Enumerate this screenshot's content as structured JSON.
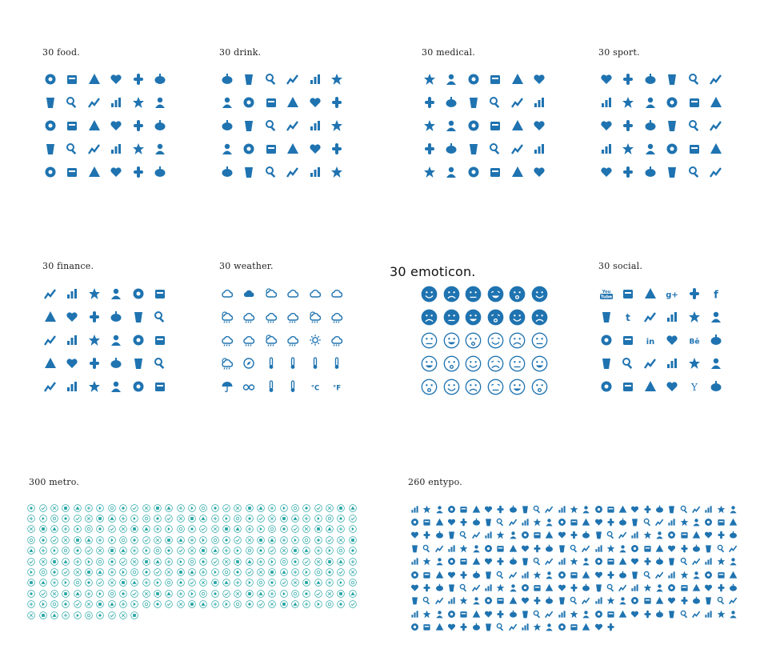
{
  "palette": {
    "icon_blue": "#1f73b0",
    "metro_teal": "#24a4a4",
    "text": "#222222"
  },
  "sets": [
    {
      "key": "food",
      "title": "30 food.",
      "count": 30,
      "style": "glyph",
      "icons": [
        "grapes-icon",
        "tomato-icon",
        "carrot-icon",
        "chili-pepper-icon",
        "mushroom-icon",
        "bell-pepper-icon",
        "cheese-icon",
        "croissant-icon",
        "pizza-slice-icon",
        "fish-icon",
        "watermelon-slice-icon",
        "bread-roll-icon",
        "chicken-icon",
        "sausage-icon",
        "macaron-icon",
        "pear-icon",
        "crown-cake-icon",
        "salad-bowl-icon",
        "popcorn-icon",
        "plate-cutlery-icon",
        "noodle-bowl-icon",
        "donut-icon",
        "cupcake-icon",
        "pretzel-icon",
        "burger-icon",
        "lollipop-icon",
        "toast-icon",
        "noodles-icon",
        "cake-slice-icon",
        "cooking-pot-icon"
      ]
    },
    {
      "key": "drink",
      "title": "30 drink.",
      "count": 30,
      "style": "glyph",
      "icons": [
        "cup-with-straw-icon",
        "tall-glass-icon",
        "glass-icon",
        "soda-cup-icon",
        "coffee-to-go-icon",
        "cocktail-icon",
        "wine-glass-icon",
        "wine-glass-full-icon",
        "can-icon",
        "juice-glass-icon",
        "tumbler-icon",
        "mug-icon",
        "tropical-drink-icon",
        "martini-icon",
        "champagne-icon",
        "beer-bucket-icon",
        "cocktail-straw-icon",
        "thermos-icon",
        "bottle-and-glass-icon",
        "teapot-icon",
        "coffee-pot-icon",
        "milk-bottle-icon",
        "bottle-icon",
        "ice-bucket-icon",
        "popsicle-icon",
        "ice-lolly-icon",
        "ice-cream-cone-icon",
        "soft-serve-icon",
        "sundae-icon",
        "beer-mug-icon"
      ]
    },
    {
      "key": "medical",
      "title": "30 medical.",
      "count": 30,
      "style": "glyph",
      "icons": [
        "battery-icon",
        "pill-bottle-icon",
        "mortar-icon",
        "hospital-icon",
        "hourglass-icon",
        "capsule-icon",
        "molecule-icon",
        "heartbeat-icon",
        "nurse-cap-icon",
        "heart-pulse-icon",
        "blood-drop-icon",
        "gender-icon",
        "magnifier-icon",
        "tooth-icon",
        "head-profile-icon",
        "hand-icon",
        "first-aid-drop-icon",
        "stethoscope-icon",
        "eye-icon",
        "wheelchair-icon",
        "doctor-icon",
        "syringe-icon",
        "dropper-icon",
        "shopping-cart-icon",
        "male-icon",
        "female-icon",
        "atom-icon",
        "first-aid-kit-icon",
        "flask-icon",
        "thermometer-icon"
      ]
    },
    {
      "key": "sport",
      "title": "30 sport.",
      "count": 30,
      "style": "glyph",
      "icons": [
        "steering-wheel-icon",
        "bowling-icon",
        "rugby-ball-icon",
        "golf-flag-icon",
        "volleyball-icon",
        "podium-icon",
        "dart-icon",
        "football-field-icon",
        "racing-flags-icon",
        "crossed-bats-icon",
        "bicycle-icon",
        "tactics-icon",
        "american-football-icon",
        "trophy-icon",
        "bottle-icon",
        "hockey-sticks-icon",
        "stopwatch-icon",
        "target-icon",
        "speedometer-icon",
        "ping-pong-icon",
        "soccer-ball-icon",
        "pills-icon",
        "shuttlecock-icon",
        "torch-icon",
        "tennis-icon",
        "medal-icon",
        "finish-banner-icon",
        "heart-rate-icon",
        "dumbbell-icon",
        "basketball-hoop-icon"
      ]
    },
    {
      "key": "finance",
      "title": "30 finance.",
      "count": 30,
      "style": "glyph",
      "icons": [
        "bank-icon",
        "calendar-icon",
        "money-bag-icon",
        "scales-icon",
        "gavel-icon",
        "growth-chart-icon",
        "globe-icon",
        "banknote-icon",
        "bar-chart-icon",
        "report-icon",
        "diamond-icon",
        "pie-chart-icon",
        "target-icon",
        "exchange-icon",
        "stacked-coins-icon",
        "calculator-icon",
        "line-chart-icon",
        "trash-icon",
        "unlocked-icon",
        "dollar-coin-icon",
        "world-map-icon",
        "grid-icon",
        "shield-icon",
        "document-icon",
        "lock-icon",
        "credit-card-icon",
        "gears-icon",
        "lightbulb-icon",
        "wallet-icon",
        "search-icon"
      ]
    },
    {
      "key": "weather",
      "title": "30 weather.",
      "count": 30,
      "style": "outline",
      "temp_c": "°C",
      "temp_f": "°F",
      "icons": [
        "cloud-icon",
        "cloud-filled-icon",
        "sun-cloud-icon",
        "moon-cloud-icon",
        "rain-cloud-icon",
        "wind-cloud-icon",
        "sun-rain-icon",
        "thunder-cloud-icon",
        "sun-drizzle-icon",
        "moon-rain-icon",
        "snow-cloud-icon",
        "windy-cloud-icon",
        "hail-cloud-icon",
        "sun-thunder-icon",
        "sleet-cloud-icon",
        "moon-snow-icon",
        "sun-icon",
        "downpour-icon",
        "sun-lightning-icon",
        "compass-icon",
        "thermometer-low-icon",
        "thermometer-mid-icon",
        "thermometer-high-icon",
        "cloud-drop-icon",
        "umbrella-icon",
        "sunglasses-icon",
        "thermometer-icon",
        "thermometer-full-icon",
        "celsius-icon",
        "fahrenheit-icon"
      ]
    },
    {
      "key": "emoticon",
      "title": "30 emoticon.",
      "count": 30,
      "style": "emoticon",
      "icons": [
        "happy-face-icon",
        "smile-face-icon",
        "grin-face-icon",
        "laugh-face-icon",
        "wink-face-icon",
        "sleepy-face-icon",
        "angry-face-icon",
        "neutral-face-icon",
        "surprised-face-icon",
        "love-face-icon",
        "sad-face-icon",
        "tired-face-icon",
        "frown-face-icon",
        "smile-outline-icon",
        "squint-face-icon",
        "annoyed-face-icon",
        "content-face-icon",
        "playful-face-icon",
        "smile-outline-icon",
        "sad-outline-icon",
        "upset-face-icon",
        "cry-face-icon",
        "calm-face-icon",
        "tongue-face-icon",
        "happy-outline-icon",
        "plain-face-icon",
        "worried-face-icon",
        "dizzy-face-icon",
        "laugh-outline-icon",
        "gloomy-face-icon"
      ]
    },
    {
      "key": "social",
      "title": "30 social.",
      "count": 30,
      "style": "glyph",
      "labels": {
        "youtube": "You Tube",
        "googleplus": "g+",
        "behance": "Bē",
        "yahoo": "Y"
      },
      "icons": [
        "youtube-icon",
        "appnet-icon",
        "rss-icon",
        "googleplus-icon",
        "vimeo-icon",
        "facebook-icon",
        "appstore-icon",
        "tumblr-icon",
        "instagram-icon",
        "pinterest-icon",
        "paypal-icon",
        "dribbble-icon",
        "dropbox-icon",
        "soundcloud-icon",
        "linkedin-icon",
        "twitter-icon",
        "behance-icon",
        "skype-icon",
        "youtube-play-icon",
        "pinterest-circle-icon",
        "apple-icon",
        "picasa-icon",
        "windows-icon",
        "android-icon",
        "soundcloud-wave-icon",
        "forrst-icon",
        "wordpress-icon",
        "drive-icon",
        "yahoo-icon",
        "refresh-icon"
      ]
    },
    {
      "key": "metro",
      "title": "300 metro.",
      "count": 300,
      "style": "circle-outline",
      "icons": [
        "search-icon",
        "check-icon",
        "close-icon",
        "plus-icon",
        "minus-icon",
        "question-icon",
        "alert-icon",
        "star-icon",
        "heart-icon",
        "home-icon",
        "user-icon",
        "mail-icon",
        "phone-icon",
        "camera-icon",
        "music-icon",
        "video-icon",
        "settings-icon",
        "lock-icon",
        "unlock-icon",
        "cloud-icon",
        "download-icon",
        "upload-icon",
        "refresh-icon",
        "play-icon",
        "pause-icon",
        "stop-icon",
        "next-icon",
        "previous-icon",
        "shuffle-icon"
      ]
    },
    {
      "key": "entypo",
      "title": "260 entypo.",
      "count": 260,
      "style": "glyph",
      "icons": [
        "add-user-icon",
        "contact-card-icon",
        "chat-icon",
        "location-pin-icon",
        "map-icon",
        "compass-icon",
        "flag-icon",
        "tools-icon",
        "scissors-icon",
        "brush-icon",
        "gauge-icon",
        "camera-icon",
        "music-note-icon",
        "key-icon",
        "voicemail-icon",
        "clipboard-icon",
        "trophy-icon",
        "archive-icon",
        "ticket-icon",
        "lab-flask-icon",
        "warning-icon",
        "question-icon",
        "info-icon",
        "mail-icon",
        "heart-icon",
        "star-icon",
        "user-icon"
      ]
    }
  ]
}
